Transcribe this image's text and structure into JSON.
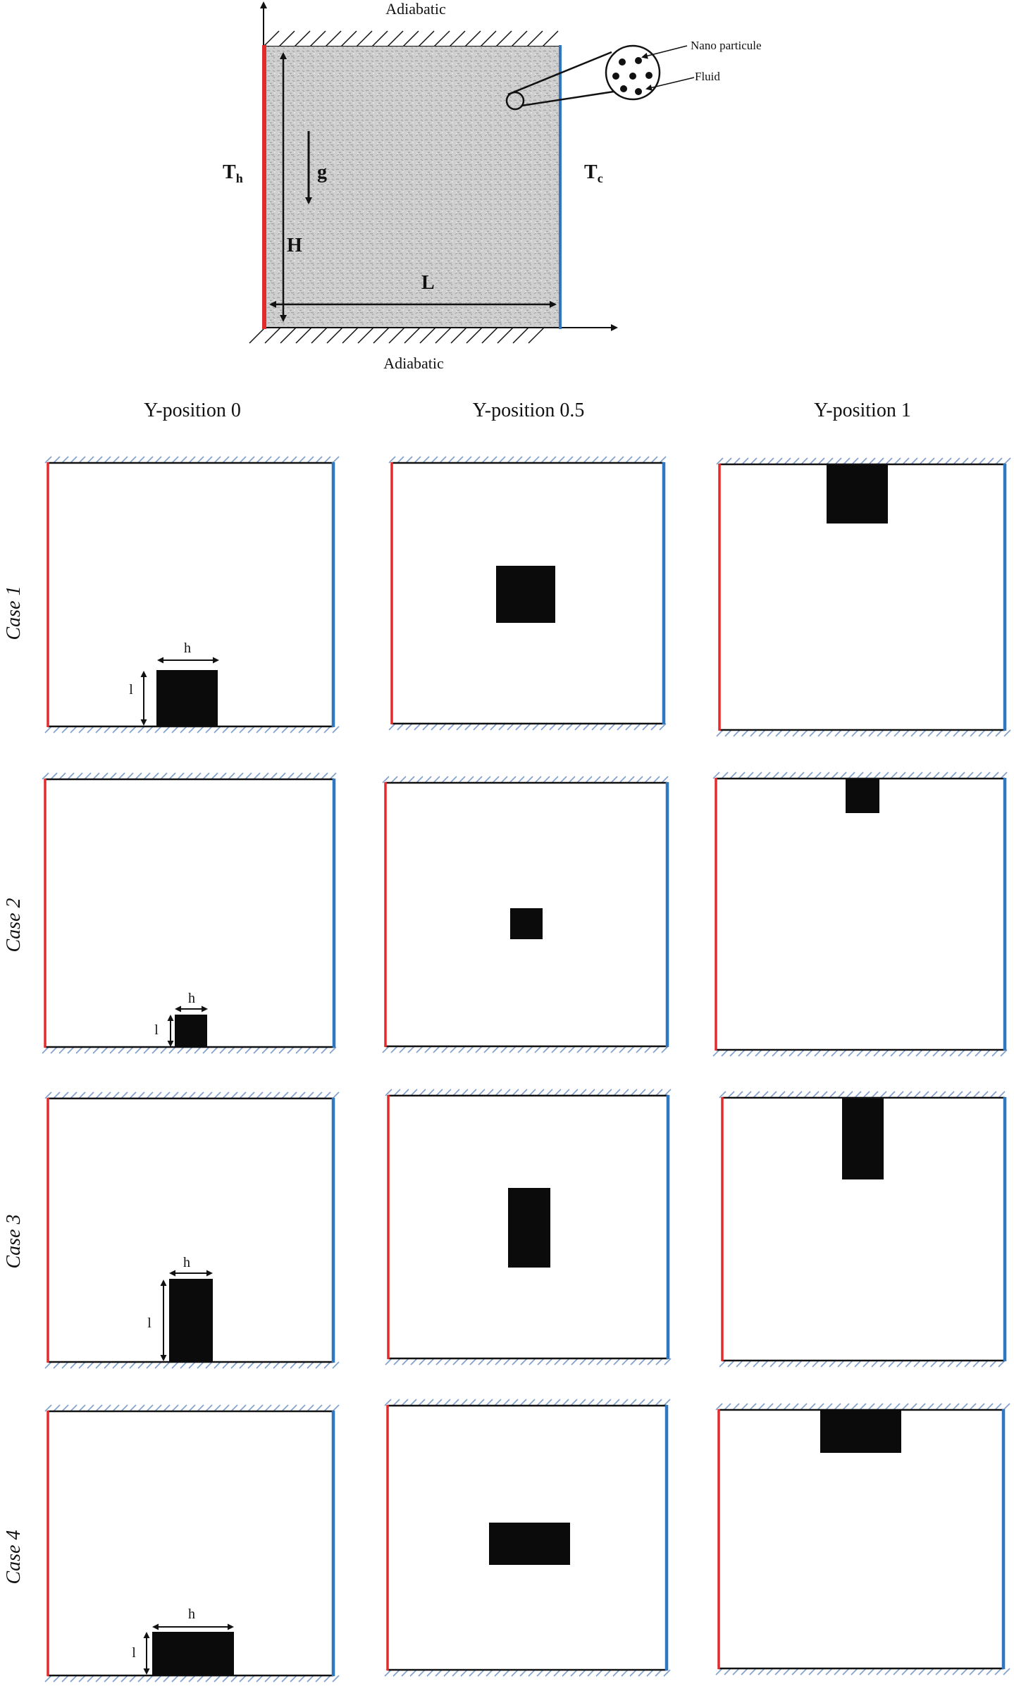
{
  "top": {
    "adiabatic_top": "Adiabatic",
    "adiabatic_bottom": "Adiabatic",
    "th_main": "T",
    "th_sub": "h",
    "tc_main": "T",
    "tc_sub": "c",
    "g": "g",
    "H": "H",
    "L": "L",
    "nano_label": "Nano particule",
    "fluid_label": "Fluid"
  },
  "colors": {
    "hot": "#e32b2b",
    "cold": "#2f77c1",
    "block": "#0b0b0b",
    "hatch": "#7f9fcf"
  },
  "columns": [
    "Y-position 0",
    "Y-position 0.5",
    "Y-position 1"
  ],
  "rows": [
    "Case 1",
    "Case 2",
    "Case 3",
    "Case 4"
  ],
  "dim": {
    "h": "h",
    "l": "l"
  }
}
